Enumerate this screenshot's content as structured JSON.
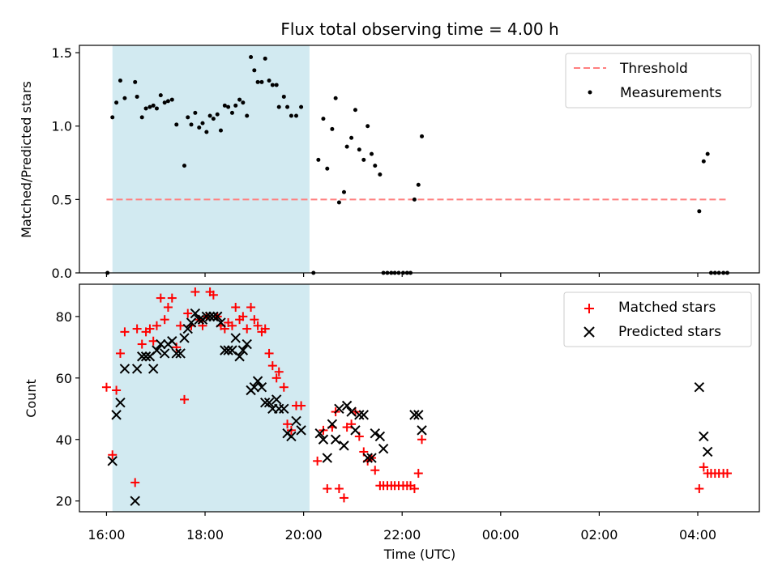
{
  "chart_data": [
    {
      "type": "scatter",
      "title": "Flux total observing time = 4.00 h",
      "xlabel": "",
      "ylabel": "Matched/Predicted stars",
      "ylim": [
        0,
        1.55
      ],
      "yticks": [
        "0.0",
        "0.5",
        "1.0",
        "1.5"
      ],
      "x_unit": "hours since 16:00 UTC",
      "xlim": [
        -0.55,
        13.25
      ],
      "observing_window": [
        0.12,
        4.12
      ],
      "legend_position": "upper right",
      "threshold": {
        "name": "Threshold",
        "x_range": [
          0.0,
          12.6
        ],
        "y": 0.5,
        "color": "#ff7f7f"
      },
      "series": [
        {
          "name": "Measurements",
          "color": "#000000",
          "points": [
            [
              0.02,
              0.0
            ],
            [
              0.12,
              1.06
            ],
            [
              0.2,
              1.16
            ],
            [
              0.28,
              1.31
            ],
            [
              0.37,
              1.19
            ],
            [
              0.58,
              1.3
            ],
            [
              0.62,
              1.2
            ],
            [
              0.72,
              1.06
            ],
            [
              0.8,
              1.12
            ],
            [
              0.88,
              1.13
            ],
            [
              0.95,
              1.14
            ],
            [
              1.02,
              1.12
            ],
            [
              1.1,
              1.21
            ],
            [
              1.18,
              1.16
            ],
            [
              1.25,
              1.17
            ],
            [
              1.33,
              1.18
            ],
            [
              1.42,
              1.01
            ],
            [
              1.58,
              0.73
            ],
            [
              1.65,
              1.06
            ],
            [
              1.72,
              1.01
            ],
            [
              1.8,
              1.09
            ],
            [
              1.88,
              0.99
            ],
            [
              1.95,
              1.02
            ],
            [
              2.03,
              0.96
            ],
            [
              2.1,
              1.07
            ],
            [
              2.17,
              1.05
            ],
            [
              2.25,
              1.08
            ],
            [
              2.32,
              0.97
            ],
            [
              2.4,
              1.14
            ],
            [
              2.47,
              1.13
            ],
            [
              2.55,
              1.09
            ],
            [
              2.62,
              1.14
            ],
            [
              2.7,
              1.18
            ],
            [
              2.77,
              1.16
            ],
            [
              2.85,
              1.07
            ],
            [
              2.93,
              1.47
            ],
            [
              3.0,
              1.38
            ],
            [
              3.07,
              1.3
            ],
            [
              3.15,
              1.3
            ],
            [
              3.22,
              1.46
            ],
            [
              3.3,
              1.31
            ],
            [
              3.37,
              1.28
            ],
            [
              3.45,
              1.28
            ],
            [
              3.5,
              1.13
            ],
            [
              3.6,
              1.2
            ],
            [
              3.67,
              1.13
            ],
            [
              3.75,
              1.07
            ],
            [
              3.85,
              1.07
            ],
            [
              3.95,
              1.13
            ],
            [
              4.2,
              0.0
            ],
            [
              4.3,
              0.77
            ],
            [
              4.4,
              1.05
            ],
            [
              4.48,
              0.71
            ],
            [
              4.58,
              0.98
            ],
            [
              4.65,
              1.19
            ],
            [
              4.72,
              0.48
            ],
            [
              4.82,
              0.55
            ],
            [
              4.88,
              0.86
            ],
            [
              4.97,
              0.92
            ],
            [
              5.05,
              1.11
            ],
            [
              5.13,
              0.84
            ],
            [
              5.22,
              0.77
            ],
            [
              5.3,
              1.0
            ],
            [
              5.38,
              0.81
            ],
            [
              5.45,
              0.73
            ],
            [
              5.55,
              0.67
            ],
            [
              5.62,
              0.0
            ],
            [
              5.7,
              0.0
            ],
            [
              5.78,
              0.0
            ],
            [
              5.85,
              0.0
            ],
            [
              5.93,
              0.0
            ],
            [
              6.02,
              0.0
            ],
            [
              6.1,
              0.0
            ],
            [
              6.17,
              0.0
            ],
            [
              6.25,
              0.5
            ],
            [
              6.33,
              0.6
            ],
            [
              6.4,
              0.93
            ],
            [
              12.03,
              0.42
            ],
            [
              12.12,
              0.76
            ],
            [
              12.2,
              0.81
            ],
            [
              12.27,
              0.0
            ],
            [
              12.35,
              0.0
            ],
            [
              12.43,
              0.0
            ],
            [
              12.52,
              0.0
            ],
            [
              12.6,
              0.0
            ]
          ]
        }
      ]
    },
    {
      "type": "scatter",
      "title": "",
      "xlabel": "Time (UTC)",
      "ylabel": "Count",
      "ylim": [
        16.5,
        90.5
      ],
      "yticks": [
        "20",
        "40",
        "60",
        "80"
      ],
      "x_unit": "hours since 16:00 UTC",
      "xlim": [
        -0.55,
        13.25
      ],
      "xticks": [
        "16:00",
        "18:00",
        "20:00",
        "22:00",
        "00:00",
        "02:00",
        "04:00"
      ],
      "observing_window": [
        0.12,
        4.12
      ],
      "legend_position": "upper right",
      "series": [
        {
          "name": "Matched stars",
          "marker": "plus",
          "color": "#ff0000",
          "points": [
            [
              0.0,
              57
            ],
            [
              0.12,
              35
            ],
            [
              0.2,
              56
            ],
            [
              0.28,
              68
            ],
            [
              0.37,
              75
            ],
            [
              0.58,
              26
            ],
            [
              0.62,
              76
            ],
            [
              0.72,
              71
            ],
            [
              0.8,
              75
            ],
            [
              0.88,
              76
            ],
            [
              0.95,
              72
            ],
            [
              1.02,
              77
            ],
            [
              1.1,
              86
            ],
            [
              1.18,
              79
            ],
            [
              1.25,
              83
            ],
            [
              1.33,
              86
            ],
            [
              1.42,
              70
            ],
            [
              1.5,
              77
            ],
            [
              1.58,
              53
            ],
            [
              1.65,
              81
            ],
            [
              1.72,
              77
            ],
            [
              1.8,
              88
            ],
            [
              1.88,
              79
            ],
            [
              1.95,
              77
            ],
            [
              2.03,
              80
            ],
            [
              2.1,
              88
            ],
            [
              2.17,
              87
            ],
            [
              2.25,
              80
            ],
            [
              2.32,
              77
            ],
            [
              2.4,
              76
            ],
            [
              2.47,
              78
            ],
            [
              2.55,
              77
            ],
            [
              2.62,
              83
            ],
            [
              2.7,
              79
            ],
            [
              2.77,
              80
            ],
            [
              2.85,
              76
            ],
            [
              2.93,
              83
            ],
            [
              3.0,
              79
            ],
            [
              3.07,
              77
            ],
            [
              3.15,
              75
            ],
            [
              3.22,
              76
            ],
            [
              3.3,
              68
            ],
            [
              3.37,
              64
            ],
            [
              3.45,
              60
            ],
            [
              3.5,
              62
            ],
            [
              3.6,
              57
            ],
            [
              3.67,
              45
            ],
            [
              3.75,
              43
            ],
            [
              3.85,
              51
            ],
            [
              3.95,
              51
            ],
            [
              4.28,
              33
            ],
            [
              4.4,
              43
            ],
            [
              4.48,
              24
            ],
            [
              4.58,
              44
            ],
            [
              4.65,
              49
            ],
            [
              4.72,
              24
            ],
            [
              4.82,
              21
            ],
            [
              4.88,
              44
            ],
            [
              4.97,
              45
            ],
            [
              5.05,
              49
            ],
            [
              5.13,
              41
            ],
            [
              5.22,
              36
            ],
            [
              5.3,
              33
            ],
            [
              5.38,
              34
            ],
            [
              5.45,
              30
            ],
            [
              5.55,
              25
            ],
            [
              5.62,
              25
            ],
            [
              5.7,
              25
            ],
            [
              5.78,
              25
            ],
            [
              5.85,
              25
            ],
            [
              5.93,
              25
            ],
            [
              6.02,
              25
            ],
            [
              6.1,
              25
            ],
            [
              6.17,
              25
            ],
            [
              6.25,
              24
            ],
            [
              6.33,
              29
            ],
            [
              6.4,
              40
            ],
            [
              12.03,
              24
            ],
            [
              12.12,
              31
            ],
            [
              12.2,
              29
            ],
            [
              12.27,
              29
            ],
            [
              12.35,
              29
            ],
            [
              12.43,
              29
            ],
            [
              12.52,
              29
            ],
            [
              12.6,
              29
            ]
          ]
        },
        {
          "name": "Predicted stars",
          "marker": "x",
          "color": "#000000",
          "points": [
            [
              0.12,
              33
            ],
            [
              0.2,
              48
            ],
            [
              0.28,
              52
            ],
            [
              0.37,
              63
            ],
            [
              0.58,
              20
            ],
            [
              0.62,
              63
            ],
            [
              0.72,
              67
            ],
            [
              0.8,
              67
            ],
            [
              0.88,
              67
            ],
            [
              0.95,
              63
            ],
            [
              1.02,
              69
            ],
            [
              1.1,
              71
            ],
            [
              1.18,
              68
            ],
            [
              1.25,
              71
            ],
            [
              1.33,
              72
            ],
            [
              1.42,
              68
            ],
            [
              1.5,
              68
            ],
            [
              1.58,
              73
            ],
            [
              1.65,
              76
            ],
            [
              1.72,
              78
            ],
            [
              1.8,
              81
            ],
            [
              1.88,
              79
            ],
            [
              1.95,
              79
            ],
            [
              2.03,
              80
            ],
            [
              2.1,
              80
            ],
            [
              2.17,
              80
            ],
            [
              2.25,
              80
            ],
            [
              2.32,
              78
            ],
            [
              2.4,
              69
            ],
            [
              2.47,
              69
            ],
            [
              2.55,
              69
            ],
            [
              2.62,
              73
            ],
            [
              2.7,
              67
            ],
            [
              2.77,
              69
            ],
            [
              2.85,
              71
            ],
            [
              2.93,
              56
            ],
            [
              3.0,
              57
            ],
            [
              3.07,
              59
            ],
            [
              3.15,
              57
            ],
            [
              3.22,
              52
            ],
            [
              3.3,
              52
            ],
            [
              3.37,
              50
            ],
            [
              3.45,
              53
            ],
            [
              3.5,
              50
            ],
            [
              3.6,
              50
            ],
            [
              3.67,
              42
            ],
            [
              3.75,
              41
            ],
            [
              3.85,
              46
            ],
            [
              3.95,
              43
            ],
            [
              4.33,
              42
            ],
            [
              4.4,
              40
            ],
            [
              4.48,
              34
            ],
            [
              4.58,
              45
            ],
            [
              4.65,
              40
            ],
            [
              4.72,
              50
            ],
            [
              4.82,
              38
            ],
            [
              4.88,
              51
            ],
            [
              4.97,
              49
            ],
            [
              5.05,
              43
            ],
            [
              5.13,
              48
            ],
            [
              5.22,
              48
            ],
            [
              5.3,
              34
            ],
            [
              5.38,
              34
            ],
            [
              5.45,
              42
            ],
            [
              5.55,
              41
            ],
            [
              5.62,
              37
            ],
            [
              6.25,
              48
            ],
            [
              6.33,
              48
            ],
            [
              6.4,
              43
            ],
            [
              12.03,
              57
            ],
            [
              12.12,
              41
            ],
            [
              12.2,
              36
            ]
          ]
        }
      ]
    }
  ]
}
